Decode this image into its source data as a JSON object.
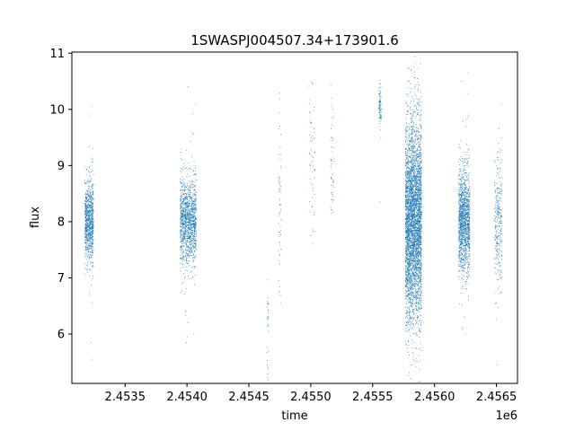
{
  "chart_data": {
    "type": "scatter",
    "title": "1SWASPJ004507.34+173901.6",
    "xlabel": "time",
    "ylabel": "flux",
    "x_offset_label": "1e6",
    "xlim": [
      2453070,
      2456670
    ],
    "ylim": [
      5.12,
      11.02
    ],
    "x_ticks": [
      2453500,
      2454000,
      2454500,
      2455000,
      2455500,
      2456000,
      2456500
    ],
    "x_tick_labels": [
      "2.4535",
      "2.4540",
      "2.4545",
      "2.4550",
      "2.4555",
      "2.4560",
      "2.4565"
    ],
    "y_ticks": [
      6,
      7,
      8,
      9,
      10,
      11
    ],
    "y_tick_labels": [
      "6",
      "7",
      "8",
      "9",
      "10",
      "11"
    ],
    "grid": false,
    "point_color": "#1f77b4",
    "clusters": [
      {
        "x_start": 2453175,
        "x_end": 2453245,
        "center": 8.0,
        "spread": 0.35,
        "points": 900,
        "outliers": [
          [
            2453230,
            10.05
          ],
          [
            2453222,
            9.9
          ],
          [
            2453228,
            5.55
          ],
          [
            2453224,
            5.85
          ],
          [
            2453210,
            6.75
          ],
          [
            2453235,
            6.55
          ],
          [
            2453240,
            9.3
          ]
        ]
      },
      {
        "x_start": 2453945,
        "x_end": 2454075,
        "center": 8.0,
        "spread": 0.38,
        "points": 1300,
        "outliers": [
          [
            2454010,
            10.4
          ],
          [
            2454072,
            10.1
          ],
          [
            2453990,
            6.4
          ],
          [
            2453995,
            5.85
          ],
          [
            2454000,
            5.95
          ],
          [
            2454008,
            6.2
          ],
          [
            2454055,
            6.0
          ],
          [
            2453980,
            7.0
          ]
        ]
      },
      {
        "x_start": 2454645,
        "x_end": 2454660,
        "center": 6.2,
        "spread": 0.5,
        "points": 30,
        "outliers": [
          [
            2454652,
            5.42
          ]
        ]
      },
      {
        "x_start": 2454740,
        "x_end": 2454760,
        "center": 8.3,
        "spread": 0.8,
        "points": 60,
        "outliers": [
          [
            2454750,
            9.7
          ]
        ]
      },
      {
        "x_start": 2454985,
        "x_end": 2455035,
        "center": 9.3,
        "spread": 0.6,
        "points": 60,
        "outliers": [
          [
            2455020,
            7.6
          ]
        ]
      },
      {
        "x_start": 2455160,
        "x_end": 2455185,
        "center": 8.9,
        "spread": 0.5,
        "points": 50,
        "outliers": [
          [
            2455170,
            10.2
          ]
        ]
      },
      {
        "x_start": 2455550,
        "x_end": 2455570,
        "center": 10.0,
        "spread": 0.22,
        "points": 90,
        "outliers": [
          [
            2455560,
            8.35
          ]
        ]
      },
      {
        "x_start": 2455765,
        "x_end": 2455895,
        "center": 8.0,
        "spread": 0.85,
        "points": 4200,
        "outliers": [
          [
            2455790,
            10.72
          ],
          [
            2455830,
            10.75
          ],
          [
            2455860,
            10.55
          ],
          [
            2455800,
            5.45
          ],
          [
            2455850,
            5.42
          ],
          [
            2455870,
            5.5
          ]
        ]
      },
      {
        "x_start": 2456195,
        "x_end": 2456285,
        "center": 8.0,
        "spread": 0.45,
        "points": 1400,
        "outliers": [
          [
            2456220,
            10.5
          ],
          [
            2456270,
            10.65
          ],
          [
            2456250,
            6.0
          ],
          [
            2456240,
            6.3
          ],
          [
            2456275,
            9.9
          ]
        ]
      },
      {
        "x_start": 2456485,
        "x_end": 2456545,
        "center": 8.0,
        "spread": 0.55,
        "points": 300,
        "outliers": [
          [
            2456510,
            9.1
          ],
          [
            2456500,
            6.55
          ],
          [
            2456505,
            5.45
          ]
        ]
      }
    ]
  }
}
